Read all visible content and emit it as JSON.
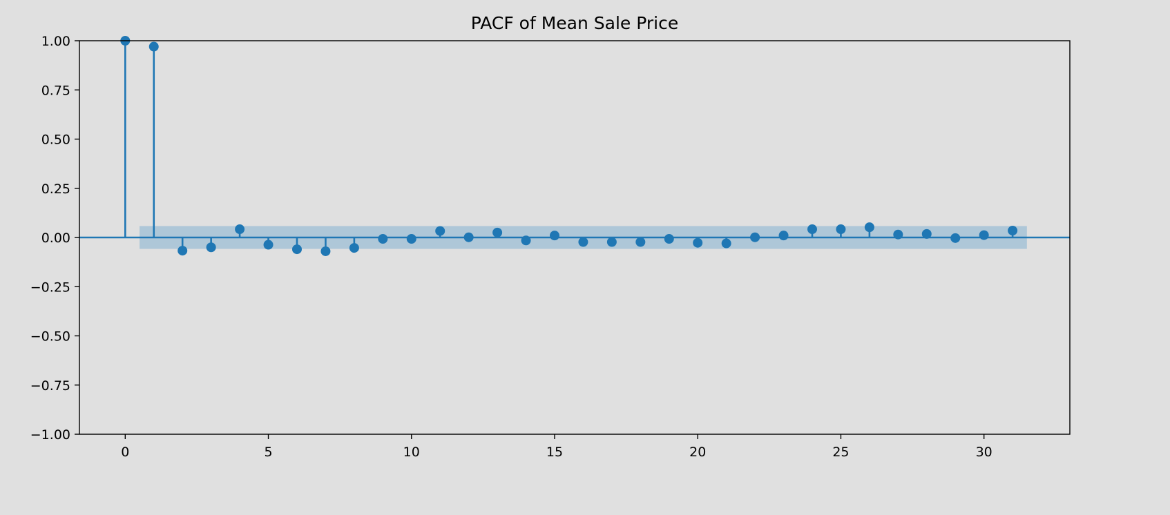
{
  "chart_data": {
    "type": "stem",
    "title": "PACF of Mean Sale Price",
    "xlabel": "",
    "ylabel": "",
    "xlim": [
      -1.6,
      33
    ],
    "ylim": [
      -1.0,
      1.0
    ],
    "xticks": [
      0,
      5,
      10,
      15,
      20,
      25,
      30
    ],
    "yticks": [
      -1.0,
      -0.75,
      -0.5,
      -0.25,
      0.0,
      0.25,
      0.5,
      0.75,
      1.0
    ],
    "ytick_labels": [
      "−1.00",
      "−0.75",
      "−0.50",
      "−0.25",
      "0.00",
      "0.25",
      "0.50",
      "0.75",
      "1.00"
    ],
    "xtick_labels": [
      "0",
      "5",
      "10",
      "15",
      "20",
      "25",
      "30"
    ],
    "grid": false,
    "legend": "none",
    "colors": {
      "stem": "#1f77b4",
      "confidence_band": "#aec7d8",
      "background": "#e0e0e0"
    },
    "confidence_interval": {
      "x_range": [
        0.5,
        31.5
      ],
      "lower": -0.058,
      "upper": 0.058
    },
    "lags": [
      0,
      1,
      2,
      3,
      4,
      5,
      6,
      7,
      8,
      9,
      10,
      11,
      12,
      13,
      14,
      15,
      16,
      17,
      18,
      19,
      20,
      21,
      22,
      23,
      24,
      25,
      26,
      27,
      28,
      29,
      30,
      31
    ],
    "values": [
      1.0,
      0.97,
      -0.067,
      -0.05,
      0.042,
      -0.037,
      -0.06,
      -0.07,
      -0.053,
      -0.007,
      -0.007,
      0.033,
      0.001,
      0.025,
      -0.015,
      0.01,
      -0.023,
      -0.023,
      -0.023,
      -0.007,
      -0.027,
      -0.03,
      0.001,
      0.01,
      0.042,
      0.042,
      0.052,
      0.015,
      0.018,
      -0.003,
      0.012,
      0.035
    ]
  }
}
